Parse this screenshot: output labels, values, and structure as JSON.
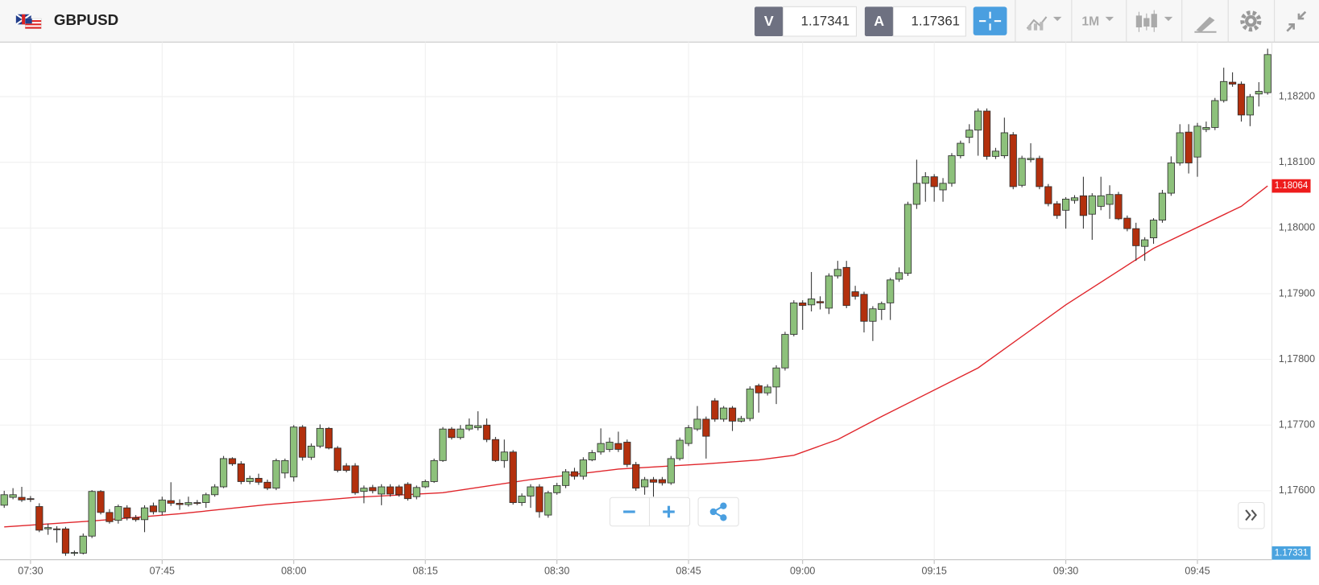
{
  "toolbar": {
    "symbol": "GBPUSD",
    "sell_label": "V",
    "sell_price": 1.17341,
    "buy_label": "A",
    "buy_price": 1.17361,
    "timeframe": "1M"
  },
  "chart_data": {
    "type": "candlestick",
    "x": [
      "07:27",
      "07:28",
      "07:29",
      "07:30",
      "07:31",
      "07:32",
      "07:33",
      "07:34",
      "07:35",
      "07:36",
      "07:37",
      "07:38",
      "07:39",
      "07:40",
      "07:41",
      "07:42",
      "07:43",
      "07:44",
      "07:45",
      "07:46",
      "07:47",
      "07:48",
      "07:49",
      "07:50",
      "07:51",
      "07:52",
      "07:53",
      "07:54",
      "07:55",
      "07:56",
      "07:57",
      "07:58",
      "07:59",
      "08:00",
      "08:01",
      "08:02",
      "08:03",
      "08:04",
      "08:05",
      "08:06",
      "08:07",
      "08:08",
      "08:09",
      "08:10",
      "08:11",
      "08:12",
      "08:13",
      "08:14",
      "08:15",
      "08:16",
      "08:17",
      "08:18",
      "08:19",
      "08:20",
      "08:21",
      "08:22",
      "08:23",
      "08:24",
      "08:25",
      "08:26",
      "08:27",
      "08:28",
      "08:29",
      "08:30",
      "08:31",
      "08:32",
      "08:33",
      "08:34",
      "08:35",
      "08:36",
      "08:37",
      "08:38",
      "08:39",
      "08:40",
      "08:41",
      "08:42",
      "08:43",
      "08:44",
      "08:45",
      "08:46",
      "08:47",
      "08:48",
      "08:49",
      "08:50",
      "08:52",
      "08:53",
      "08:54",
      "08:55",
      "08:57",
      "08:58",
      "08:59",
      "09:00",
      "09:01",
      "09:02",
      "09:03",
      "09:04",
      "09:05",
      "09:06",
      "09:07",
      "09:08",
      "09:09",
      "09:10",
      "09:11",
      "09:12",
      "09:13",
      "09:14",
      "09:15",
      "09:16",
      "09:17",
      "09:18",
      "09:19",
      "09:20",
      "09:21",
      "09:22",
      "09:23",
      "09:24",
      "09:25",
      "09:26",
      "09:27",
      "09:28",
      "09:29",
      "09:30",
      "09:31",
      "09:32",
      "09:33",
      "09:34",
      "09:35",
      "09:36",
      "09:37",
      "09:38",
      "09:39",
      "09:40",
      "09:41",
      "09:42",
      "09:43",
      "09:44",
      "09:45",
      "09:46",
      "09:47",
      "09:48",
      "09:49",
      "09:50",
      "09:51",
      "09:52",
      "09:53"
    ],
    "open": [
      1.17578,
      1.1759,
      1.1759,
      1.17588,
      1.17576,
      1.17542,
      1.17542,
      1.17542,
      1.17505,
      1.17505,
      1.17531,
      1.17599,
      1.17567,
      1.17555,
      1.17574,
      1.17559,
      1.17556,
      1.17577,
      1.17568,
      1.17585,
      1.17581,
      1.17579,
      1.17582,
      1.17582,
      1.17594,
      1.17606,
      1.17649,
      1.17641,
      1.17614,
      1.17619,
      1.17613,
      1.17604,
      1.17627,
      1.17621,
      1.17697,
      1.17651,
      1.17668,
      1.17695,
      1.17665,
      1.17638,
      1.17638,
      1.17599,
      1.17605,
      1.17595,
      1.17606,
      1.17606,
      1.1761,
      1.17591,
      1.17606,
      1.17614,
      1.17646,
      1.17694,
      1.17681,
      1.17694,
      1.17696,
      1.177,
      1.17678,
      1.17646,
      1.17659,
      1.17582,
      1.17592,
      1.17606,
      1.17563,
      1.17597,
      1.17608,
      1.17629,
      1.17622,
      1.17647,
      1.17659,
      1.17663,
      1.17672,
      1.17674,
      1.1764,
      1.17606,
      1.17617,
      1.17617,
      1.17612,
      1.17649,
      1.17672,
      1.17694,
      1.17709,
      1.17737,
      1.17709,
      1.17726,
      1.17706,
      1.1771,
      1.1776,
      1.17749,
      1.17758,
      1.17787,
      1.17838,
      1.17886,
      1.17883,
      1.17888,
      1.17878,
      1.17927,
      1.1794,
      1.17903,
      1.17899,
      1.17858,
      1.17876,
      1.17886,
      1.17922,
      1.17931,
      1.18036,
      1.18068,
      1.18078,
      1.18058,
      1.18068,
      1.1811,
      1.18138,
      1.18149,
      1.18178,
      1.18109,
      1.1811,
      1.18142,
      1.18065,
      1.18104,
      1.18106,
      1.18063,
      1.18037,
      1.18027,
      1.18042,
      1.18049,
      1.18021,
      1.18033,
      1.18036,
      1.18051,
      1.18015,
      1.17999,
      1.17972,
      1.17985,
      1.18012,
      1.18053,
      1.18099,
      1.18146,
      1.18108,
      1.1815,
      1.18153,
      1.18194,
      1.18222,
      1.18219,
      1.18172,
      1.18204,
      1.18206
    ],
    "high": [
      1.176,
      1.17604,
      1.17606,
      1.17592,
      1.17581,
      1.1755,
      1.17546,
      1.17545,
      1.17509,
      1.17535,
      1.17601,
      1.17601,
      1.17572,
      1.17579,
      1.17578,
      1.17563,
      1.17578,
      1.17582,
      1.17591,
      1.17613,
      1.17587,
      1.17591,
      1.17586,
      1.17597,
      1.1761,
      1.17653,
      1.17651,
      1.17645,
      1.17623,
      1.17626,
      1.17617,
      1.17649,
      1.17649,
      1.177,
      1.177,
      1.17672,
      1.17701,
      1.17697,
      1.17668,
      1.17642,
      1.17642,
      1.17608,
      1.17609,
      1.1761,
      1.1761,
      1.17609,
      1.17613,
      1.17608,
      1.17617,
      1.17649,
      1.17697,
      1.17697,
      1.177,
      1.1771,
      1.17721,
      1.1771,
      1.17682,
      1.17678,
      1.17662,
      1.17596,
      1.1761,
      1.1761,
      1.176,
      1.17612,
      1.17633,
      1.17635,
      1.17651,
      1.17662,
      1.17695,
      1.17681,
      1.1769,
      1.17678,
      1.17644,
      1.17621,
      1.17621,
      1.17621,
      1.17653,
      1.17681,
      1.177,
      1.17729,
      1.17713,
      1.17741,
      1.17729,
      1.17729,
      1.17714,
      1.17759,
      1.17763,
      1.17762,
      1.17791,
      1.17842,
      1.1789,
      1.1789,
      1.17933,
      1.17896,
      1.17931,
      1.1795,
      1.1795,
      1.17912,
      1.17903,
      1.17881,
      1.17888,
      1.17924,
      1.1794,
      1.1804,
      1.18104,
      1.18085,
      1.18082,
      1.18076,
      1.18114,
      1.18133,
      1.18158,
      1.18182,
      1.18182,
      1.18122,
      1.18168,
      1.18146,
      1.1811,
      1.18129,
      1.1811,
      1.18067,
      1.18041,
      1.18047,
      1.1805,
      1.18078,
      1.18053,
      1.18078,
      1.18065,
      1.18055,
      1.18019,
      1.18008,
      1.17986,
      1.18015,
      1.18058,
      1.18109,
      1.18158,
      1.18158,
      1.1816,
      1.18162,
      1.18198,
      1.18244,
      1.18237,
      1.18223,
      1.18204,
      1.18222,
      1.18273
    ],
    "low": [
      1.17574,
      1.17587,
      1.17583,
      1.17583,
      1.17537,
      1.17533,
      1.17521,
      1.17501,
      1.17501,
      1.17503,
      1.17528,
      1.17564,
      1.1755,
      1.1755,
      1.17555,
      1.17553,
      1.17537,
      1.17564,
      1.17563,
      1.17577,
      1.17571,
      1.17576,
      1.17578,
      1.17574,
      1.17591,
      1.17604,
      1.17638,
      1.1761,
      1.1761,
      1.17609,
      1.17601,
      1.17601,
      1.17619,
      1.17614,
      1.17646,
      1.17647,
      1.17665,
      1.17663,
      1.17628,
      1.17628,
      1.17594,
      1.17581,
      1.17596,
      1.17578,
      1.17591,
      1.17591,
      1.17585,
      1.17587,
      1.17604,
      1.17612,
      1.17644,
      1.17678,
      1.17678,
      1.17691,
      1.17692,
      1.17674,
      1.17644,
      1.17635,
      1.17579,
      1.17577,
      1.17574,
      1.17559,
      1.17559,
      1.17594,
      1.17604,
      1.17617,
      1.17617,
      1.17645,
      1.17655,
      1.17659,
      1.17659,
      1.17636,
      1.176,
      1.17594,
      1.17591,
      1.17608,
      1.17609,
      1.17646,
      1.17668,
      1.17691,
      1.17649,
      1.17705,
      1.17705,
      1.17691,
      1.17704,
      1.17706,
      1.17719,
      1.17745,
      1.17732,
      1.17783,
      1.17835,
      1.17845,
      1.17873,
      1.17876,
      1.17869,
      1.17923,
      1.17878,
      1.17891,
      1.17841,
      1.17828,
      1.1786,
      1.1786,
      1.17918,
      1.17927,
      1.18029,
      1.1804,
      1.1804,
      1.1804,
      1.18063,
      1.18106,
      1.18129,
      1.1811,
      1.18104,
      1.18105,
      1.18106,
      1.18059,
      1.18062,
      1.181,
      1.18059,
      1.18033,
      1.18014,
      1.17999,
      1.18037,
      1.17999,
      1.17982,
      1.18027,
      1.18014,
      1.18012,
      1.17995,
      1.1795,
      1.1795,
      1.17976,
      1.18008,
      1.18049,
      1.18095,
      1.18083,
      1.18078,
      1.18146,
      1.18149,
      1.18191,
      1.18215,
      1.18162,
      1.18155,
      1.18185,
      1.18203
    ],
    "close": [
      1.17594,
      1.17594,
      1.17586,
      1.17587,
      1.1754,
      1.17544,
      1.17541,
      1.17505,
      1.17506,
      1.17531,
      1.17599,
      1.17567,
      1.17553,
      1.17576,
      1.17559,
      1.17556,
      1.17574,
      1.17568,
      1.17586,
      1.17581,
      1.17579,
      1.17582,
      1.17581,
      1.17594,
      1.17606,
      1.17649,
      1.17641,
      1.17614,
      1.17619,
      1.17613,
      1.17604,
      1.17646,
      1.17646,
      1.17697,
      1.17651,
      1.17668,
      1.17695,
      1.17665,
      1.17631,
      1.17631,
      1.17597,
      1.17604,
      1.176,
      1.17606,
      1.17595,
      1.17594,
      1.17588,
      1.17605,
      1.17614,
      1.17646,
      1.17694,
      1.17681,
      1.17694,
      1.177,
      1.17699,
      1.17678,
      1.17646,
      1.17659,
      1.17582,
      1.17592,
      1.17606,
      1.17568,
      1.17597,
      1.17608,
      1.17629,
      1.17622,
      1.17647,
      1.17658,
      1.17672,
      1.17674,
      1.17663,
      1.1764,
      1.17604,
      1.17617,
      1.17613,
      1.17612,
      1.17649,
      1.17677,
      1.17696,
      1.17709,
      1.17683,
      1.17709,
      1.17726,
      1.17706,
      1.1771,
      1.17755,
      1.17749,
      1.17758,
      1.17787,
      1.17838,
      1.17886,
      1.17882,
      1.17892,
      1.17886,
      1.17927,
      1.17937,
      1.17882,
      1.17896,
      1.17858,
      1.17877,
      1.17885,
      1.17921,
      1.17932,
      1.18036,
      1.18068,
      1.18078,
      1.18063,
      1.18068,
      1.1811,
      1.18129,
      1.18149,
      1.18178,
      1.18109,
      1.18117,
      1.18145,
      1.18063,
      1.18106,
      1.18106,
      1.18063,
      1.18037,
      1.18019,
      1.18044,
      1.18046,
      1.18019,
      1.18049,
      1.18049,
      1.18051,
      1.18014,
      1.17999,
      1.17973,
      1.17982,
      1.18012,
      1.18053,
      1.18099,
      1.18145,
      1.18099,
      1.18155,
      1.18153,
      1.18194,
      1.18223,
      1.18219,
      1.18172,
      1.182,
      1.18208,
      1.18264
    ],
    "up_color": "#8dc17b",
    "down_color": "#b3300d",
    "edge_color": "#2e2e2e",
    "moving_average": {
      "color": "#e0252b",
      "x": [
        "07:27",
        "07:37",
        "07:47",
        "07:57",
        "08:07",
        "08:17",
        "08:27",
        "08:37",
        "08:47",
        "08:54",
        "08:59",
        "09:04",
        "09:09",
        "09:20",
        "09:30",
        "09:40",
        "09:50",
        "09:53"
      ],
      "values": [
        1.17545,
        1.17554,
        1.17565,
        1.17579,
        1.1759,
        1.17597,
        1.17617,
        1.17633,
        1.17641,
        1.17647,
        1.17654,
        1.17678,
        1.17713,
        1.17787,
        1.17883,
        1.17969,
        1.18033,
        1.18064
      ]
    },
    "current_price": 1.17331,
    "ylim": [
      1.17495,
      1.18283
    ],
    "yticks": [
      {
        "value": 1.176,
        "label": "1,17600"
      },
      {
        "value": 1.177,
        "label": "1,17700"
      },
      {
        "value": 1.178,
        "label": "1,17800"
      },
      {
        "value": 1.179,
        "label": "1,17900"
      },
      {
        "value": 1.18,
        "label": "1,18000"
      },
      {
        "value": 1.181,
        "label": "1,18100"
      },
      {
        "value": 1.182,
        "label": "1,18200"
      }
    ],
    "xticks": [
      "07:30",
      "07:45",
      "08:00",
      "08:15",
      "08:30",
      "08:45",
      "09:00",
      "09:15",
      "09:30",
      "09:45"
    ],
    "grid": true
  }
}
